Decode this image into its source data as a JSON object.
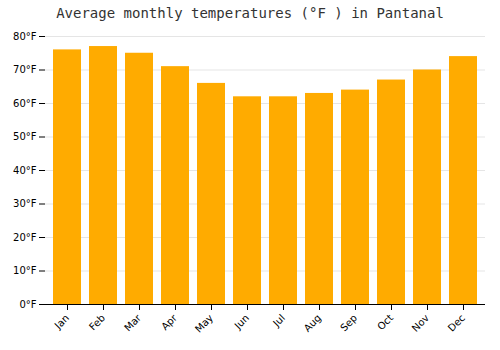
{
  "chart_data": {
    "type": "bar",
    "title": "Average monthly temperatures (°F ) in Pantanal",
    "categories": [
      "Jan",
      "Feb",
      "Mar",
      "Apr",
      "May",
      "Jun",
      "Jul",
      "Aug",
      "Sep",
      "Oct",
      "Nov",
      "Dec"
    ],
    "values": [
      76,
      77,
      75,
      71,
      66,
      62,
      62,
      63,
      64,
      67,
      70,
      74
    ],
    "color": "#FFAB00",
    "ylim": [
      0,
      80
    ],
    "yticks": [
      {
        "value": 0,
        "label": "0°F"
      },
      {
        "value": 10,
        "label": "10°F"
      },
      {
        "value": 20,
        "label": "20°F"
      },
      {
        "value": 30,
        "label": "30°F"
      },
      {
        "value": 40,
        "label": "40°F"
      },
      {
        "value": 50,
        "label": "50°F"
      },
      {
        "value": 60,
        "label": "60°F"
      },
      {
        "value": 70,
        "label": "70°F"
      },
      {
        "value": 80,
        "label": "80°F"
      }
    ],
    "grid": true
  }
}
